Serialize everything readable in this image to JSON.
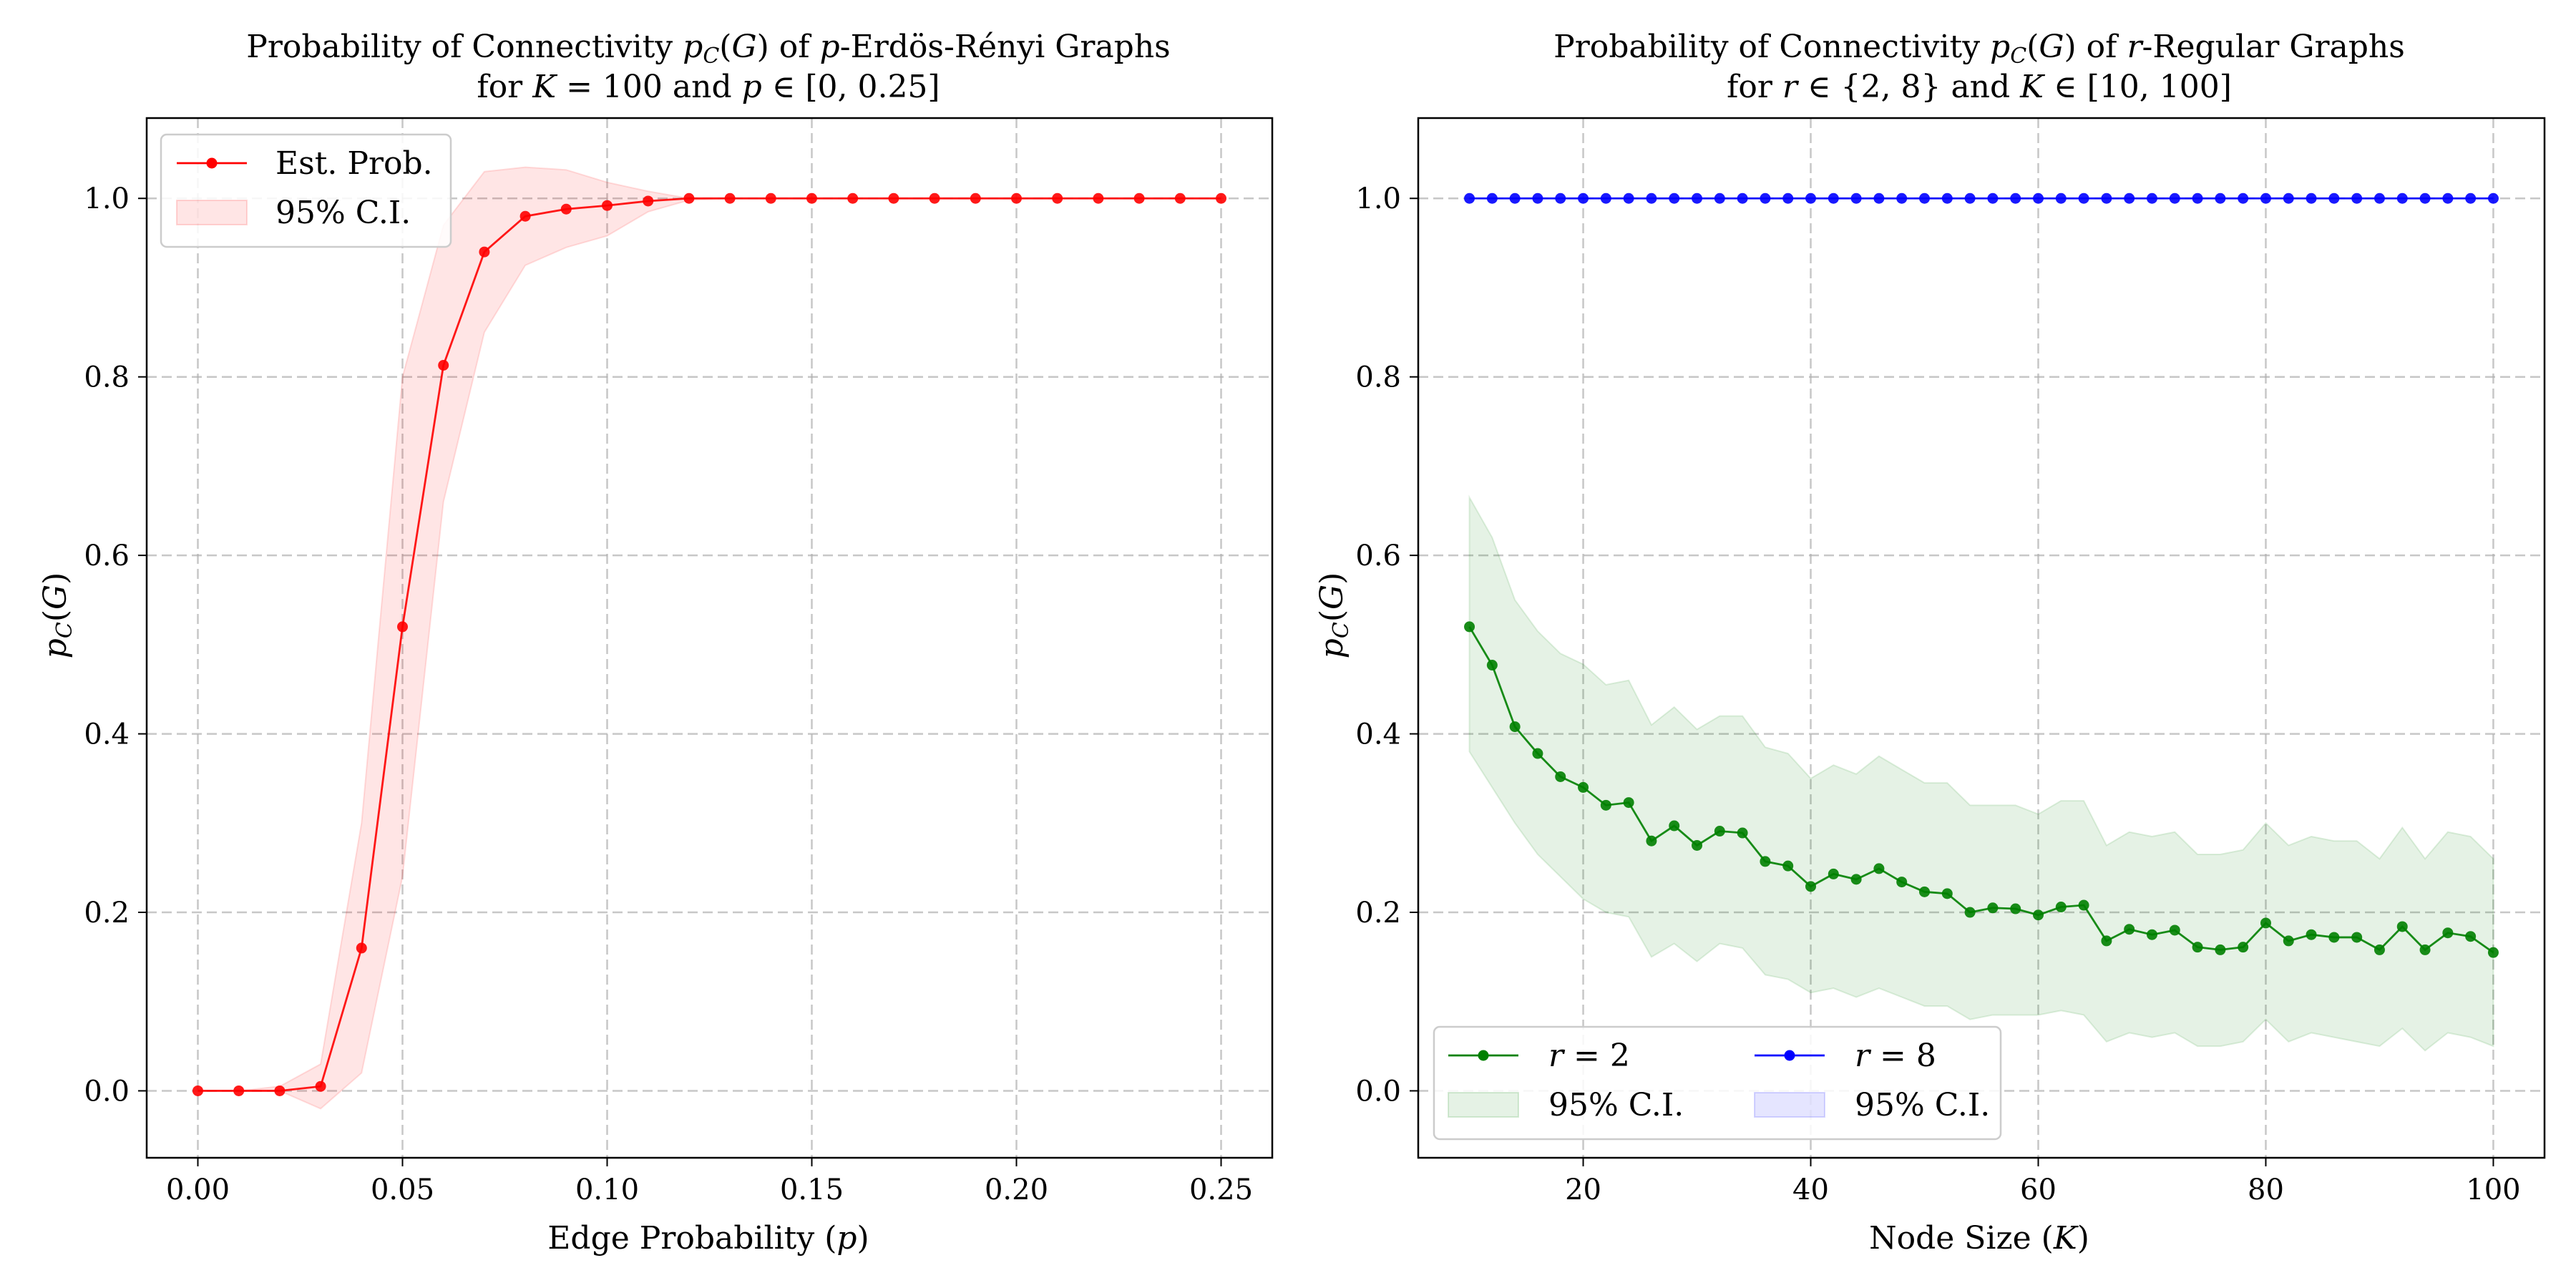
{
  "chart_data": [
    {
      "type": "line",
      "title": "Probability of Connectivity p_C(G) of p-Erdös-Rényi Graphs",
      "subtitle": "for K = 100 and p ∈ [0, 0.25]",
      "xlabel": "Edge Probability (p)",
      "ylabel": "p_C(G)",
      "xlim": [
        -0.0125,
        0.2625
      ],
      "ylim": [
        -0.075,
        1.09
      ],
      "xticks": [
        "0.00",
        "0.05",
        "0.10",
        "0.15",
        "0.20",
        "0.25"
      ],
      "yticks": [
        "0.0",
        "0.2",
        "0.4",
        "0.6",
        "0.8",
        "1.0"
      ],
      "grid": true,
      "legend_position": "top-left",
      "series": [
        {
          "name": "Est. Prob.",
          "ci_name": "95% C.I.",
          "color": "#ff0000",
          "x": [
            0.0,
            0.01,
            0.02,
            0.03,
            0.04,
            0.05,
            0.06,
            0.07,
            0.08,
            0.09,
            0.1,
            0.11,
            0.12,
            0.13,
            0.14,
            0.15,
            0.16,
            0.17,
            0.18,
            0.19,
            0.2,
            0.21,
            0.22,
            0.23,
            0.24,
            0.25
          ],
          "y": [
            0.0,
            0.0,
            0.0,
            0.005,
            0.16,
            0.52,
            0.813,
            0.94,
            0.98,
            0.988,
            0.992,
            0.997,
            1.0,
            1.0,
            1.0,
            1.0,
            1.0,
            1.0,
            1.0,
            1.0,
            1.0,
            1.0,
            1.0,
            1.0,
            1.0,
            1.0
          ],
          "ci_low": [
            0.0,
            0.0,
            0.0,
            -0.02,
            0.02,
            0.24,
            0.66,
            0.85,
            0.925,
            0.945,
            0.958,
            0.985,
            0.998,
            1.0,
            1.0,
            1.0,
            1.0,
            1.0,
            1.0,
            1.0,
            1.0,
            1.0,
            1.0,
            1.0,
            1.0,
            1.0
          ],
          "ci_high": [
            0.0,
            0.0,
            0.005,
            0.03,
            0.3,
            0.8,
            0.97,
            1.03,
            1.035,
            1.032,
            1.018,
            1.008,
            1.0,
            1.0,
            1.0,
            1.0,
            1.0,
            1.0,
            1.0,
            1.0,
            1.0,
            1.0,
            1.0,
            1.0,
            1.0,
            1.0
          ]
        }
      ]
    },
    {
      "type": "line",
      "title": "Probability of Connectivity p_C(G) of r-Regular Graphs",
      "subtitle": "for r ∈ {2, 8} and K ∈ [10, 100]",
      "xlabel": "Node Size (K)",
      "ylabel": "p_C(G)",
      "xlim": [
        5.5,
        104.5
      ],
      "ylim": [
        -0.075,
        1.09
      ],
      "xticks": [
        "20",
        "40",
        "60",
        "80",
        "100"
      ],
      "yticks": [
        "0.0",
        "0.2",
        "0.4",
        "0.6",
        "0.8",
        "1.0"
      ],
      "grid": true,
      "legend_position": "bottom-left",
      "series": [
        {
          "name": "r = 2",
          "ci_name": "95% C.I.",
          "color": "#008000",
          "x": [
            10,
            12,
            14,
            16,
            18,
            20,
            22,
            24,
            26,
            28,
            30,
            32,
            34,
            36,
            38,
            40,
            42,
            44,
            46,
            48,
            50,
            52,
            54,
            56,
            58,
            60,
            62,
            64,
            66,
            68,
            70,
            72,
            74,
            76,
            78,
            80,
            82,
            84,
            86,
            88,
            90,
            92,
            94,
            96,
            98,
            100
          ],
          "y": [
            0.52,
            0.477,
            0.408,
            0.378,
            0.352,
            0.34,
            0.32,
            0.323,
            0.28,
            0.297,
            0.275,
            0.291,
            0.289,
            0.257,
            0.252,
            0.229,
            0.243,
            0.237,
            0.249,
            0.234,
            0.223,
            0.221,
            0.2,
            0.205,
            0.204,
            0.197,
            0.206,
            0.208,
            0.168,
            0.181,
            0.175,
            0.18,
            0.161,
            0.158,
            0.161,
            0.188,
            0.168,
            0.175,
            0.172,
            0.172,
            0.158,
            0.184,
            0.158,
            0.177,
            0.173,
            0.155
          ],
          "ci_low": [
            0.38,
            0.34,
            0.3,
            0.265,
            0.24,
            0.215,
            0.2,
            0.195,
            0.15,
            0.165,
            0.145,
            0.165,
            0.16,
            0.13,
            0.125,
            0.11,
            0.115,
            0.105,
            0.115,
            0.105,
            0.095,
            0.095,
            0.08,
            0.085,
            0.085,
            0.085,
            0.09,
            0.085,
            0.055,
            0.065,
            0.06,
            0.065,
            0.05,
            0.05,
            0.055,
            0.08,
            0.055,
            0.065,
            0.06,
            0.055,
            0.05,
            0.07,
            0.045,
            0.065,
            0.06,
            0.05
          ],
          "ci_high": [
            0.665,
            0.62,
            0.55,
            0.515,
            0.49,
            0.478,
            0.455,
            0.46,
            0.41,
            0.43,
            0.405,
            0.42,
            0.42,
            0.385,
            0.378,
            0.35,
            0.365,
            0.355,
            0.375,
            0.36,
            0.345,
            0.345,
            0.32,
            0.32,
            0.32,
            0.31,
            0.325,
            0.325,
            0.275,
            0.29,
            0.285,
            0.29,
            0.265,
            0.265,
            0.27,
            0.3,
            0.275,
            0.285,
            0.28,
            0.28,
            0.26,
            0.295,
            0.26,
            0.29,
            0.285,
            0.26
          ]
        },
        {
          "name": "r = 8",
          "ci_name": "95% C.I.",
          "color": "#0000ff",
          "x": [
            10,
            12,
            14,
            16,
            18,
            20,
            22,
            24,
            26,
            28,
            30,
            32,
            34,
            36,
            38,
            40,
            42,
            44,
            46,
            48,
            50,
            52,
            54,
            56,
            58,
            60,
            62,
            64,
            66,
            68,
            70,
            72,
            74,
            76,
            78,
            80,
            82,
            84,
            86,
            88,
            90,
            92,
            94,
            96,
            98,
            100
          ],
          "y": [
            1,
            1,
            1,
            1,
            1,
            1,
            1,
            1,
            1,
            1,
            1,
            1,
            1,
            1,
            1,
            1,
            1,
            1,
            1,
            1,
            1,
            1,
            1,
            1,
            1,
            1,
            1,
            1,
            1,
            1,
            1,
            1,
            1,
            1,
            1,
            1,
            1,
            1,
            1,
            1,
            1,
            1,
            1,
            1,
            1,
            1
          ]
        }
      ]
    }
  ]
}
